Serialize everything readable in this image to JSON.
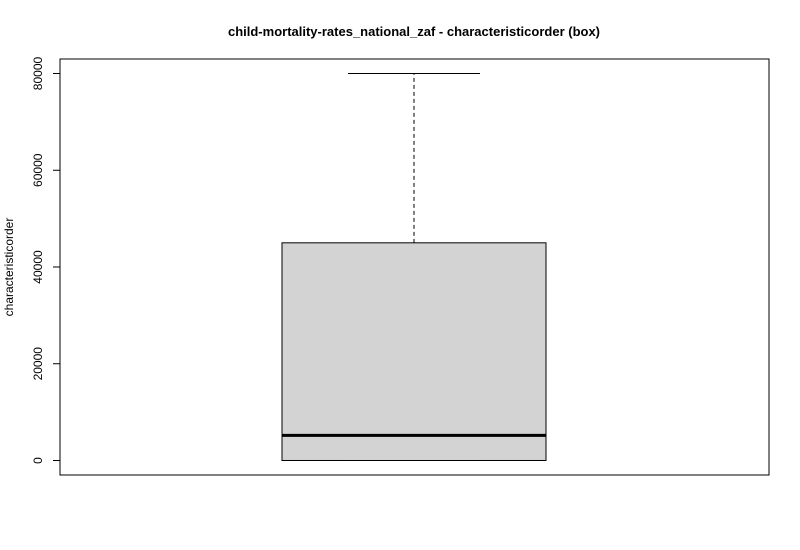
{
  "chart_data": {
    "type": "box",
    "title": "child-mortality-rates_national_zaf - characteristicorder (box)",
    "xlabel": "",
    "ylabel": "characteristicorder",
    "ylim": [
      -3000,
      83000
    ],
    "y_ticks": [
      0,
      20000,
      40000,
      60000,
      80000
    ],
    "y_tick_labels": [
      "0",
      "20000",
      "40000",
      "60000",
      "80000"
    ],
    "grid": false,
    "box": {
      "min": 0,
      "q1": 0,
      "median": 5200,
      "q3": 45000,
      "max": 80000
    },
    "colors": {
      "box_fill": "#d3d3d3",
      "stroke": "#000000"
    }
  }
}
